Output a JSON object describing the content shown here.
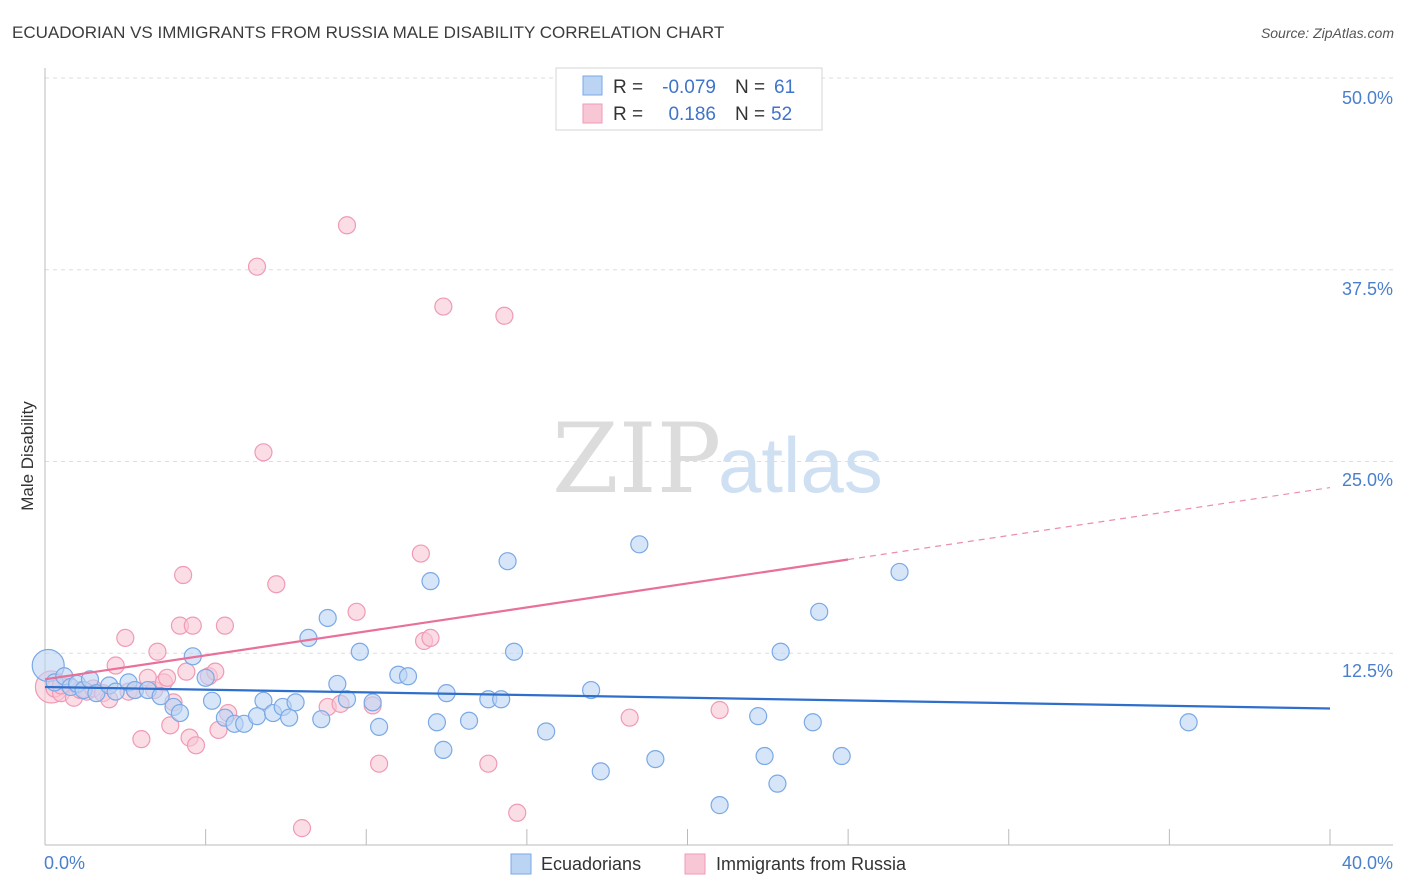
{
  "chart_data": {
    "type": "scatter",
    "title": "ECUADORIAN VS IMMIGRANTS FROM RUSSIA MALE DISABILITY CORRELATION CHART",
    "source": "Source: ZipAtlas.com",
    "watermark": {
      "zip": "ZIP",
      "atlas": "atlas"
    },
    "ylabel": "Male Disability",
    "xlim": [
      0,
      40
    ],
    "ylim": [
      0,
      50
    ],
    "x_tick_labels": [
      {
        "value": 0,
        "label": "0.0%"
      },
      {
        "value": 40,
        "label": "40.0%"
      }
    ],
    "y_tick_labels": [
      {
        "value": 50,
        "label": "50.0%"
      },
      {
        "value": 37.5,
        "label": "37.5%"
      },
      {
        "value": 25,
        "label": "25.0%"
      },
      {
        "value": 12.5,
        "label": "12.5%"
      }
    ],
    "legend": {
      "rows": [
        {
          "r_label": "R = ",
          "r_value": "-0.079",
          "n_label": "N = ",
          "n_value": "61"
        },
        {
          "r_label": "R = ",
          "r_value": "0.186",
          "n_label": "N = ",
          "n_value": "52"
        }
      ]
    },
    "series": [
      {
        "name": "Ecuadorians",
        "color": "#7aa9e6",
        "fill": "#bcd4f3",
        "line_color": "#2f6fcc",
        "trend": {
          "x0": 0,
          "y0": 10.3,
          "x1": 40,
          "y1": 8.9,
          "solid_until": 40
        },
        "points": [
          [
            0.3,
            10.6
          ],
          [
            0.6,
            11.0
          ],
          [
            0.8,
            10.3
          ],
          [
            1.0,
            10.5
          ],
          [
            1.2,
            10.1
          ],
          [
            1.4,
            10.8
          ],
          [
            1.6,
            9.9
          ],
          [
            2.0,
            10.4
          ],
          [
            2.2,
            10.0
          ],
          [
            2.6,
            10.6
          ],
          [
            2.8,
            10.1
          ],
          [
            3.2,
            10.1
          ],
          [
            3.6,
            9.7
          ],
          [
            4.0,
            9.0
          ],
          [
            4.2,
            8.6
          ],
          [
            4.6,
            12.3
          ],
          [
            5.0,
            10.9
          ],
          [
            5.2,
            9.4
          ],
          [
            5.6,
            8.3
          ],
          [
            5.9,
            7.9
          ],
          [
            6.2,
            7.9
          ],
          [
            6.6,
            8.4
          ],
          [
            6.8,
            9.4
          ],
          [
            7.1,
            8.6
          ],
          [
            7.4,
            9.0
          ],
          [
            7.6,
            8.3
          ],
          [
            7.8,
            9.3
          ],
          [
            8.2,
            13.5
          ],
          [
            8.6,
            8.2
          ],
          [
            8.8,
            14.8
          ],
          [
            9.1,
            10.5
          ],
          [
            9.4,
            9.5
          ],
          [
            9.8,
            12.6
          ],
          [
            10.2,
            9.3
          ],
          [
            10.4,
            7.7
          ],
          [
            11.0,
            11.1
          ],
          [
            11.3,
            11.0
          ],
          [
            12.0,
            17.2
          ],
          [
            12.2,
            8.0
          ],
          [
            12.4,
            6.2
          ],
          [
            12.5,
            9.9
          ],
          [
            13.2,
            8.1
          ],
          [
            13.8,
            9.5
          ],
          [
            14.2,
            9.5
          ],
          [
            14.4,
            18.5
          ],
          [
            14.6,
            12.6
          ],
          [
            15.6,
            7.4
          ],
          [
            17.0,
            10.1
          ],
          [
            17.3,
            4.8
          ],
          [
            18.5,
            19.6
          ],
          [
            19.0,
            5.6
          ],
          [
            21.0,
            2.6
          ],
          [
            22.2,
            8.4
          ],
          [
            22.4,
            5.8
          ],
          [
            22.8,
            4.0
          ],
          [
            22.9,
            12.6
          ],
          [
            24.1,
            15.2
          ],
          [
            23.9,
            8.0
          ],
          [
            24.8,
            5.8
          ],
          [
            26.6,
            17.8
          ],
          [
            35.6,
            8.0
          ]
        ],
        "big_point": {
          "x": 0.1,
          "y": 11.7,
          "size": "large"
        }
      },
      {
        "name": "Immigrants from Russia",
        "color": "#f09ab5",
        "fill": "#f8c7d6",
        "line_color": "#e8709a",
        "trend": {
          "x0": 0,
          "y0": 10.8,
          "x1": 40,
          "y1": 23.3,
          "solid_until": 25
        },
        "points": [
          [
            0.3,
            10.2
          ],
          [
            0.5,
            9.9
          ],
          [
            0.7,
            10.5
          ],
          [
            0.9,
            9.6
          ],
          [
            1.1,
            10.1
          ],
          [
            1.3,
            10.0
          ],
          [
            1.5,
            10.2
          ],
          [
            1.8,
            9.9
          ],
          [
            2.0,
            9.5
          ],
          [
            2.2,
            11.7
          ],
          [
            2.5,
            13.5
          ],
          [
            2.6,
            10.0
          ],
          [
            2.8,
            10.1
          ],
          [
            3.0,
            6.9
          ],
          [
            3.2,
            10.9
          ],
          [
            3.4,
            10.1
          ],
          [
            3.5,
            12.6
          ],
          [
            3.7,
            10.6
          ],
          [
            3.8,
            10.9
          ],
          [
            3.9,
            7.8
          ],
          [
            4.0,
            9.3
          ],
          [
            4.2,
            14.3
          ],
          [
            4.3,
            17.6
          ],
          [
            4.4,
            11.3
          ],
          [
            4.5,
            7.0
          ],
          [
            4.6,
            14.3
          ],
          [
            4.7,
            6.5
          ],
          [
            5.1,
            11.0
          ],
          [
            5.3,
            11.3
          ],
          [
            5.4,
            7.5
          ],
          [
            5.7,
            8.6
          ],
          [
            5.6,
            14.3
          ],
          [
            6.6,
            37.7
          ],
          [
            6.8,
            25.6
          ],
          [
            7.2,
            17.0
          ],
          [
            8.0,
            1.1
          ],
          [
            8.8,
            9.0
          ],
          [
            9.2,
            9.2
          ],
          [
            9.4,
            40.4
          ],
          [
            9.7,
            15.2
          ],
          [
            10.2,
            9.1
          ],
          [
            10.4,
            5.3
          ],
          [
            11.7,
            19.0
          ],
          [
            11.8,
            13.3
          ],
          [
            12.0,
            13.5
          ],
          [
            12.4,
            35.1
          ],
          [
            13.8,
            5.3
          ],
          [
            14.3,
            34.5
          ],
          [
            14.7,
            2.1
          ],
          [
            18.2,
            8.3
          ],
          [
            21.0,
            8.8
          ],
          [
            0.5,
            10.4
          ]
        ],
        "big_point": {
          "x": 0.2,
          "y": 10.3,
          "size": "large"
        }
      }
    ]
  }
}
